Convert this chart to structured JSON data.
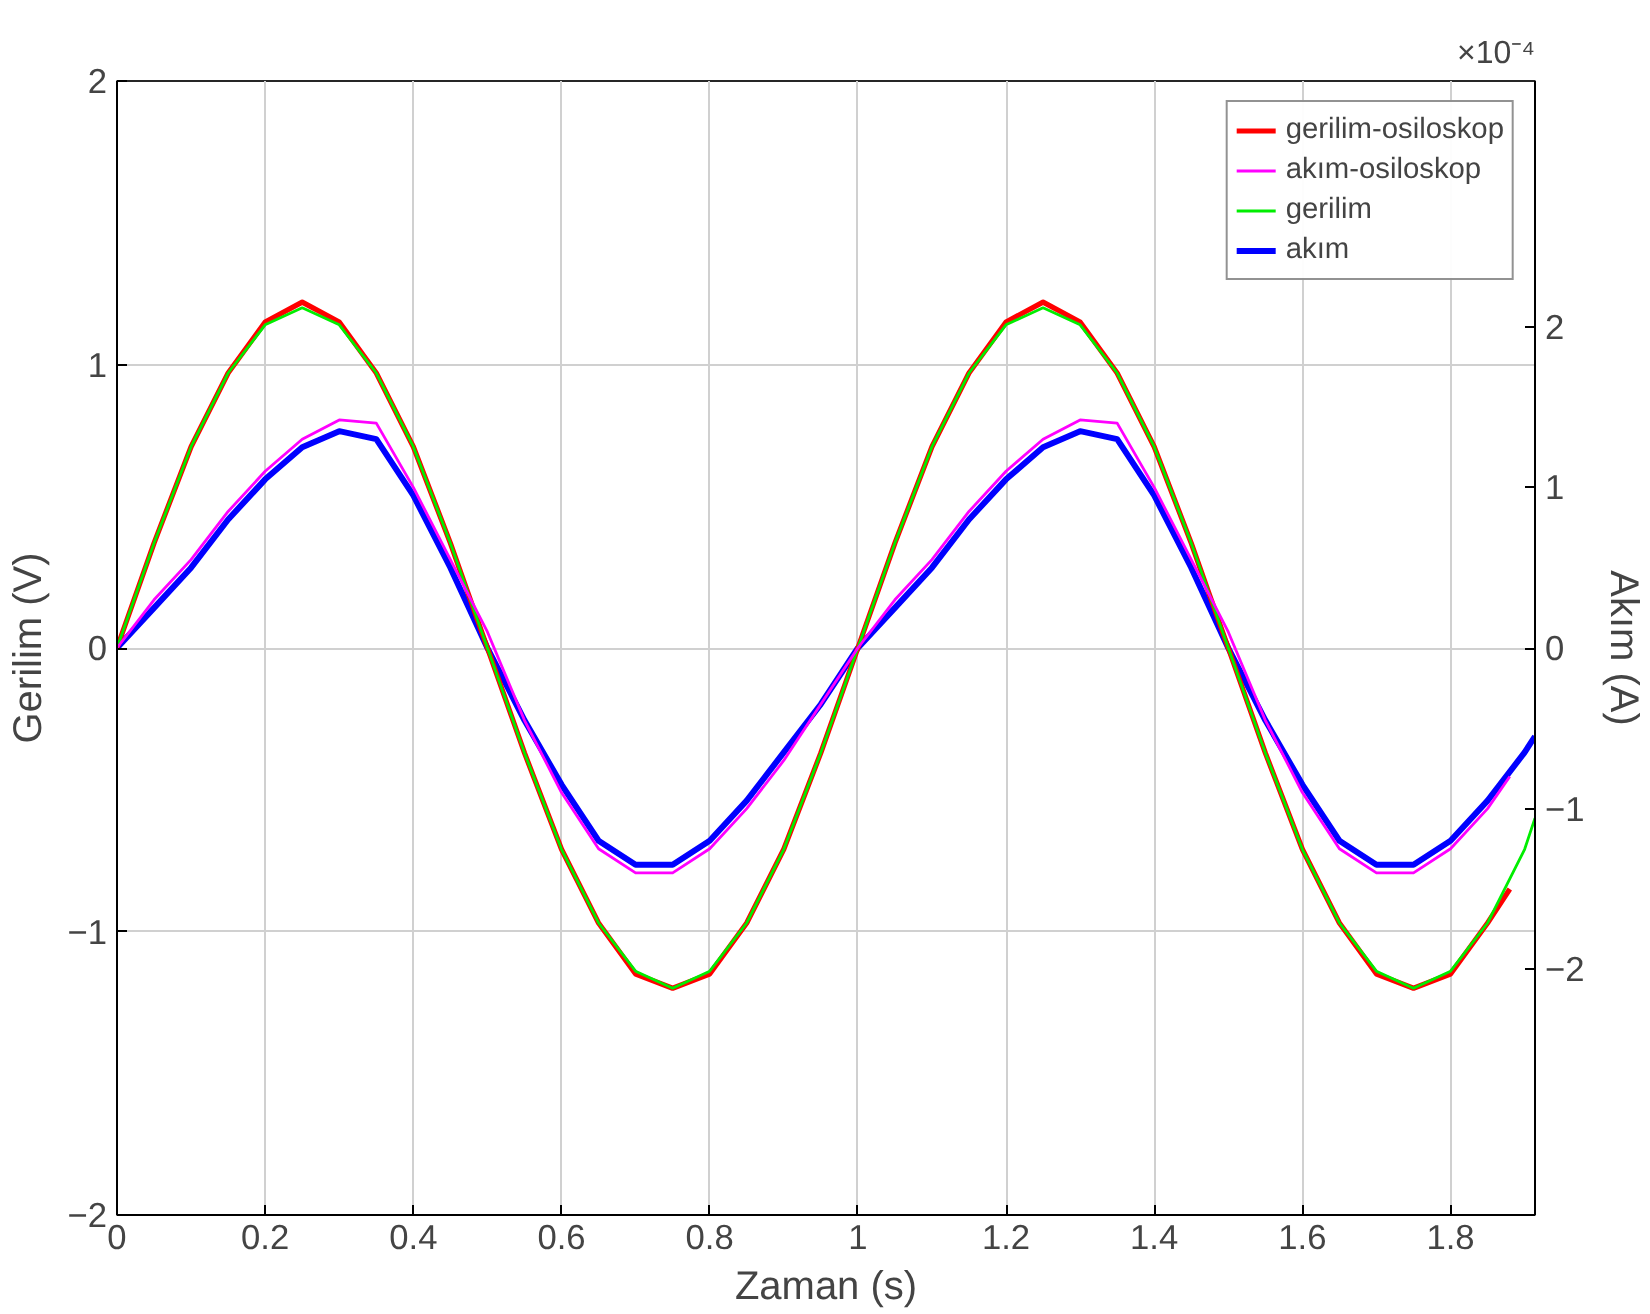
{
  "chart_data": {
    "type": "line",
    "xlabel": "Zaman (s)",
    "ylabel": "Gerilim (V)",
    "y2label": "Akım (A)",
    "xlim": [
      0,
      1.914
    ],
    "xticks": [
      0,
      0.2,
      0.4,
      0.6,
      0.8,
      1,
      1.2,
      1.4,
      1.6,
      1.8
    ],
    "ylim": [
      -2,
      2
    ],
    "yticks": [
      -2,
      -1,
      0,
      1,
      2
    ],
    "y2lim": [
      -3.53,
      3.53
    ],
    "y2ticks": [
      -2,
      -1,
      0,
      1,
      2
    ],
    "annotations": [
      "×10⁻⁴"
    ],
    "grid": true,
    "legend": "top right",
    "marker": "none",
    "line_style": "solid",
    "series": [
      {
        "name": "gerilim-osiloskop",
        "color": "#ff0000",
        "x": [
          0,
          0.05,
          0.1,
          0.15,
          0.2,
          0.25,
          0.3,
          0.35,
          0.4,
          0.45,
          0.5,
          0.55,
          0.6,
          0.65,
          0.7,
          0.75,
          0.8,
          0.85,
          0.9,
          0.95,
          1,
          1.05,
          1.1,
          1.15,
          1.2,
          1.25,
          1.3,
          1.35,
          1.4,
          1.45,
          1.5,
          1.55,
          1.6,
          1.65,
          1.7,
          1.75,
          1.8,
          1.85,
          1.88
        ],
        "values": [
          0,
          0.37,
          0.71,
          0.97,
          1.15,
          1.22,
          1.15,
          0.97,
          0.71,
          0.37,
          0,
          -0.37,
          -0.71,
          -0.97,
          -1.15,
          -1.2,
          -1.15,
          -0.97,
          -0.71,
          -0.37,
          0,
          0.37,
          0.71,
          0.97,
          1.15,
          1.22,
          1.15,
          0.97,
          0.71,
          0.37,
          0,
          -0.37,
          -0.71,
          -0.97,
          -1.15,
          -1.2,
          -1.15,
          -0.97,
          -0.85
        ]
      },
      {
        "name": "akım-osiloskop",
        "color": "#ff00ff",
        "axis": "y2",
        "x": [
          0,
          0.05,
          0.1,
          0.15,
          0.2,
          0.25,
          0.3,
          0.35,
          0.4,
          0.45,
          0.5,
          0.55,
          0.6,
          0.65,
          0.7,
          0.75,
          0.8,
          0.85,
          0.9,
          0.95,
          1,
          1.05,
          1.1,
          1.15,
          1.2,
          1.25,
          1.3,
          1.35,
          1.4,
          1.45,
          1.5,
          1.55,
          1.6,
          1.65,
          1.7,
          1.75,
          1.8,
          1.85,
          1.88
        ],
        "values": [
          0,
          0.3,
          0.55,
          0.85,
          1.1,
          1.3,
          1.42,
          1.4,
          1.0,
          0.55,
          0.1,
          -0.45,
          -0.9,
          -1.25,
          -1.4,
          -1.4,
          -1.25,
          -1.0,
          -0.7,
          -0.35,
          0,
          0.3,
          0.55,
          0.85,
          1.1,
          1.3,
          1.42,
          1.4,
          1.0,
          0.55,
          0.1,
          -0.45,
          -0.9,
          -1.25,
          -1.4,
          -1.4,
          -1.25,
          -1.0,
          -0.8
        ]
      },
      {
        "name": "gerilim",
        "color": "#00ee00",
        "x": [
          0,
          0.05,
          0.1,
          0.15,
          0.2,
          0.25,
          0.3,
          0.35,
          0.4,
          0.45,
          0.5,
          0.55,
          0.6,
          0.65,
          0.7,
          0.75,
          0.8,
          0.85,
          0.9,
          0.95,
          1,
          1.05,
          1.1,
          1.15,
          1.2,
          1.25,
          1.3,
          1.35,
          1.4,
          1.45,
          1.5,
          1.55,
          1.6,
          1.65,
          1.7,
          1.75,
          1.8,
          1.85,
          1.9,
          1.914
        ],
        "values": [
          0,
          0.37,
          0.71,
          0.97,
          1.14,
          1.2,
          1.14,
          0.97,
          0.71,
          0.37,
          0,
          -0.37,
          -0.71,
          -0.97,
          -1.14,
          -1.2,
          -1.14,
          -0.97,
          -0.71,
          -0.37,
          0,
          0.37,
          0.71,
          0.97,
          1.14,
          1.2,
          1.14,
          0.97,
          0.71,
          0.37,
          0,
          -0.37,
          -0.71,
          -0.97,
          -1.14,
          -1.2,
          -1.14,
          -0.97,
          -0.71,
          -0.6
        ]
      },
      {
        "name": "akım",
        "color": "#0000ff",
        "axis": "y2",
        "x": [
          0,
          0.05,
          0.1,
          0.15,
          0.2,
          0.25,
          0.3,
          0.35,
          0.4,
          0.45,
          0.5,
          0.55,
          0.6,
          0.65,
          0.7,
          0.75,
          0.8,
          0.85,
          0.9,
          0.95,
          1,
          1.05,
          1.1,
          1.15,
          1.2,
          1.25,
          1.3,
          1.35,
          1.4,
          1.45,
          1.5,
          1.55,
          1.6,
          1.65,
          1.7,
          1.75,
          1.8,
          1.85,
          1.9,
          1.914
        ],
        "values": [
          0,
          0.25,
          0.5,
          0.8,
          1.05,
          1.25,
          1.35,
          1.3,
          0.95,
          0.5,
          0,
          -0.45,
          -0.85,
          -1.2,
          -1.35,
          -1.35,
          -1.2,
          -0.95,
          -0.65,
          -0.35,
          0,
          0.25,
          0.5,
          0.8,
          1.05,
          1.25,
          1.35,
          1.3,
          0.95,
          0.5,
          0,
          -0.45,
          -0.85,
          -1.2,
          -1.35,
          -1.35,
          -1.2,
          -0.95,
          -0.65,
          -0.55
        ]
      }
    ]
  }
}
